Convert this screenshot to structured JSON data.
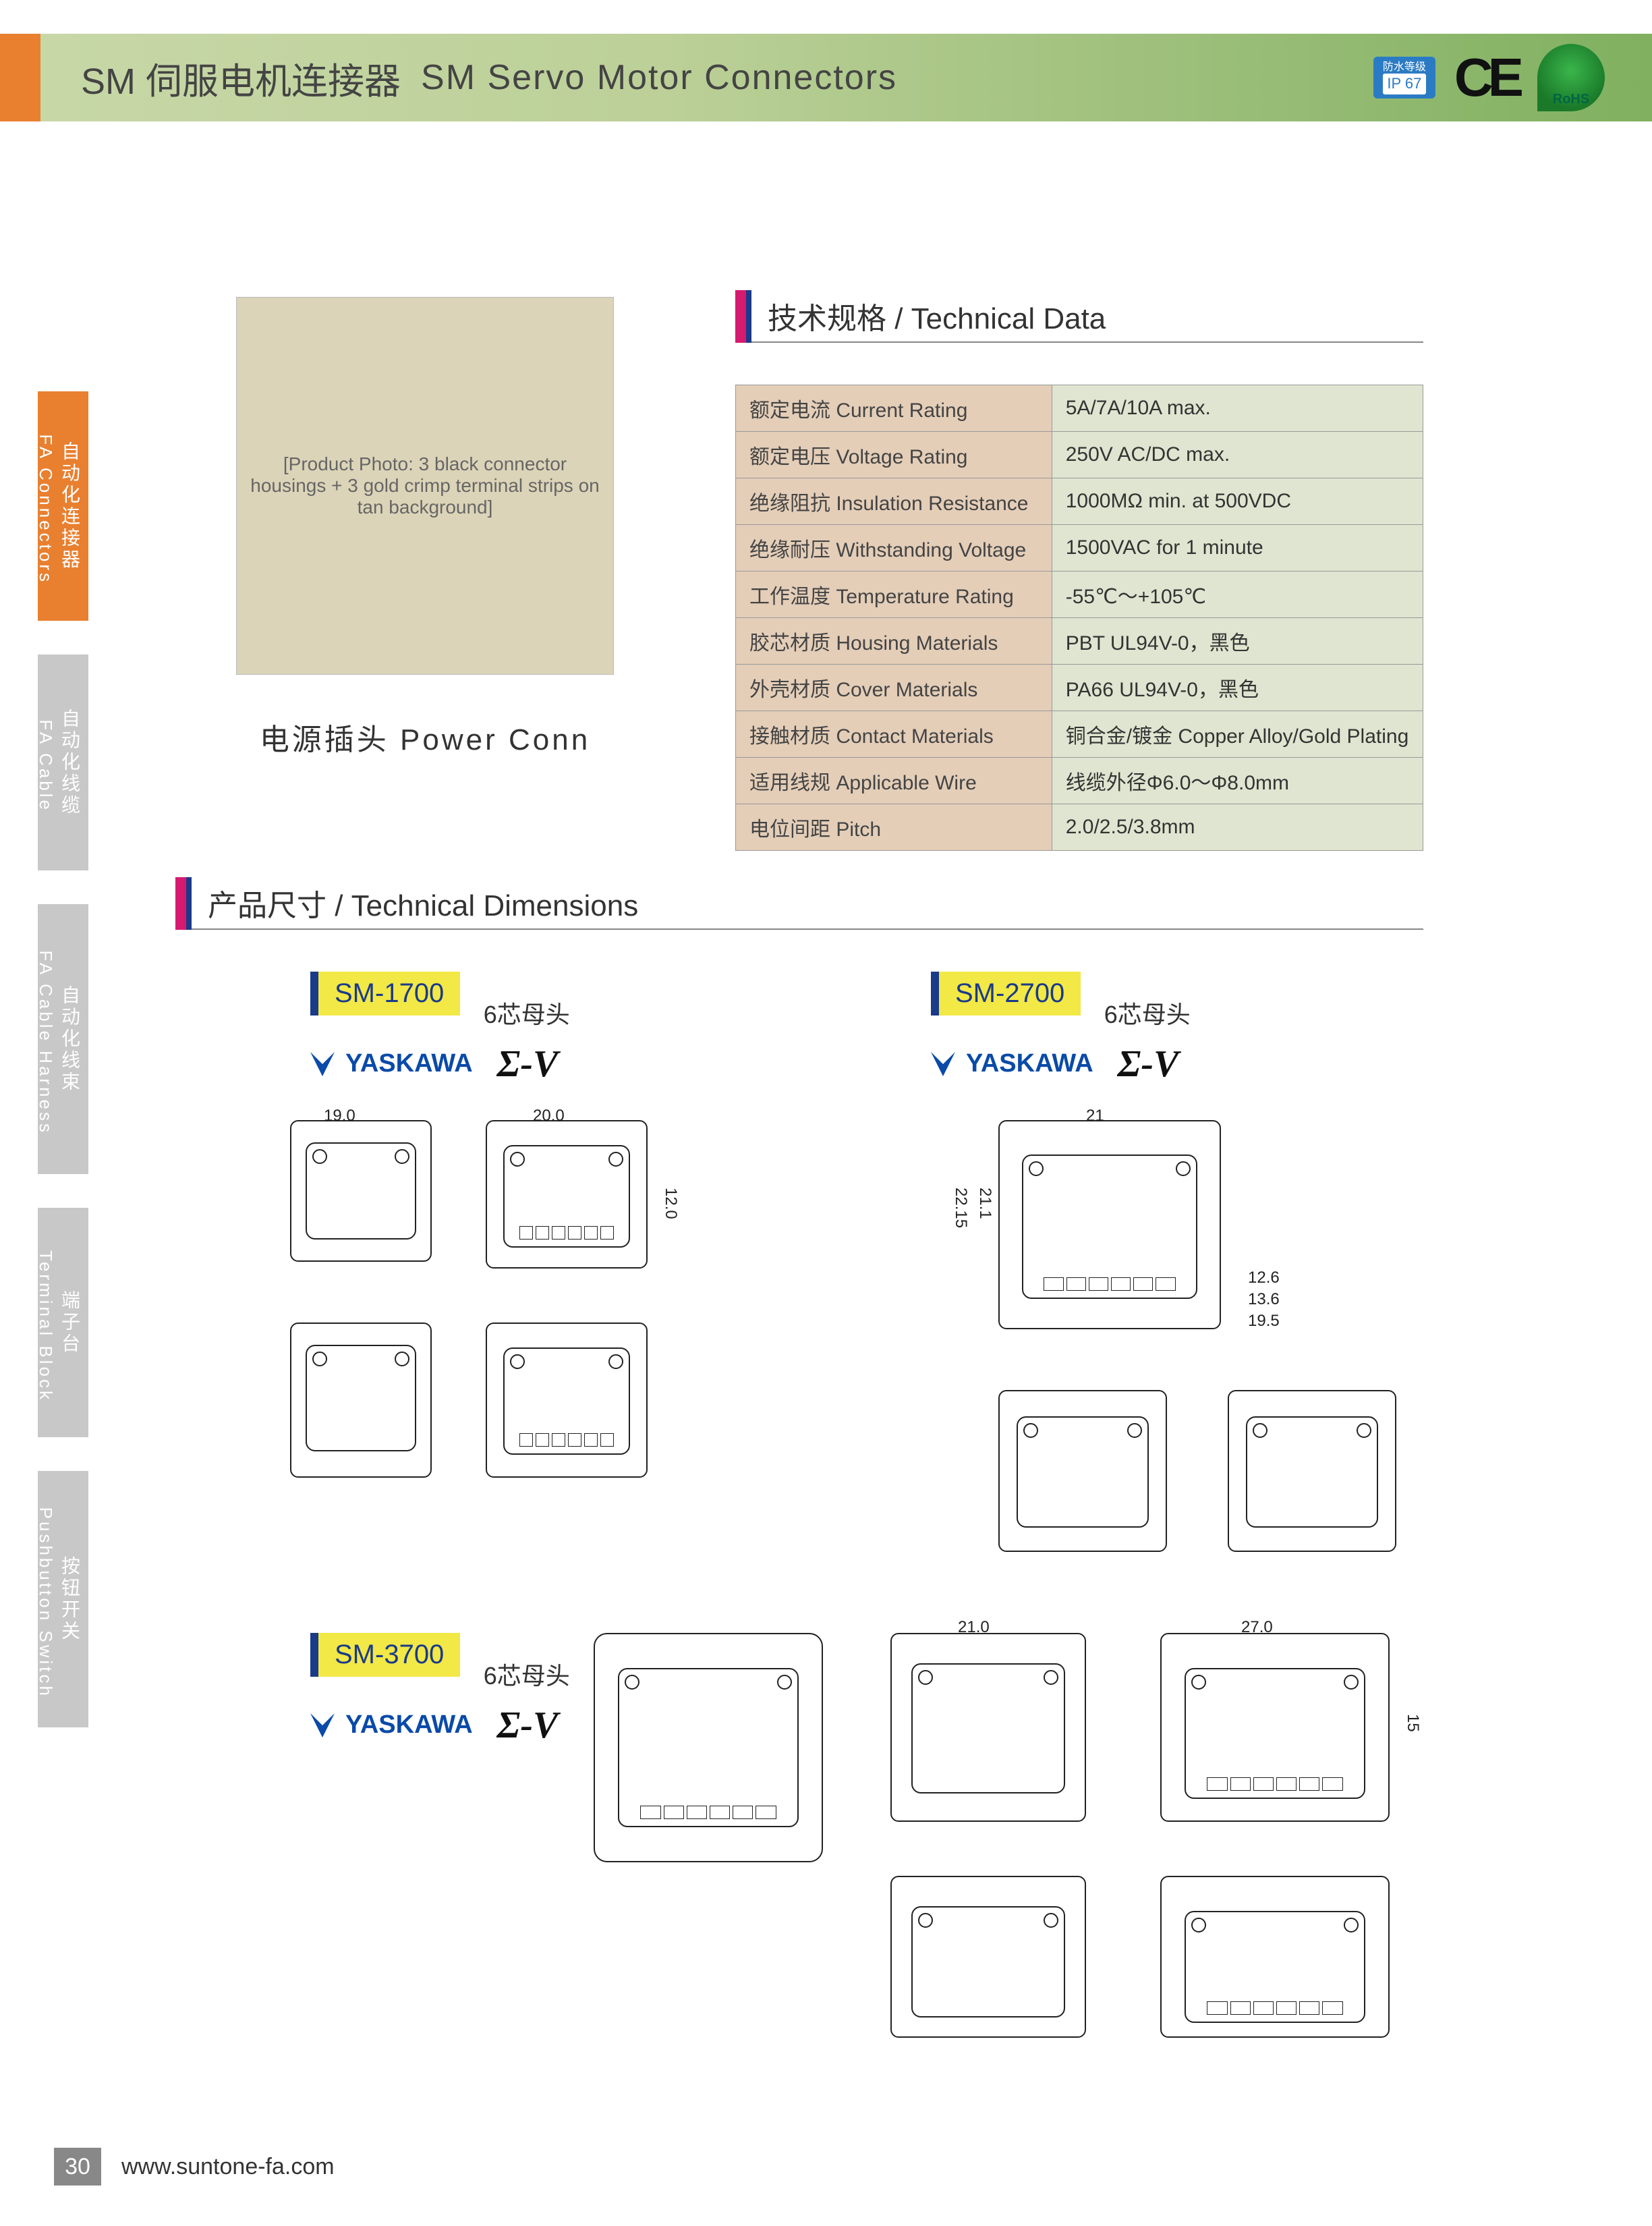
{
  "header": {
    "title_cn": "SM 伺服电机连接器",
    "title_en": "SM Servo Motor  Connectors",
    "ip_badge_top": "防水等级",
    "ip_badge": "IP 67",
    "ce": "CE",
    "rohs": "RoHS"
  },
  "side_tabs": [
    {
      "cn": "自动化连接器",
      "en": "FA Connectors"
    },
    {
      "cn": "自动化线缆",
      "en": "FA Cable"
    },
    {
      "cn": "自动化线束",
      "en": "FA Cable Harness"
    },
    {
      "cn": "端子台",
      "en": "Terminal Block"
    },
    {
      "cn": "按钮开关",
      "en": "Pushbutton Switch"
    }
  ],
  "photo_placeholder": "[Product Photo: 3 black connector housings + 3 gold crimp terminal strips on tan background]",
  "photo_caption": "电源插头  Power  Conn",
  "tech_heading": "技术规格 /  Technical Data",
  "dim_heading": "产品尺寸 /  Technical Dimensions",
  "tech_table": [
    {
      "k": "额定电流 Current Rating",
      "v": "5A/7A/10A  max."
    },
    {
      "k": "额定电压 Voltage Rating",
      "v": "250V AC/DC max."
    },
    {
      "k": "绝缘阻抗 Insulation Resistance",
      "v": "1000MΩ min. at 500VDC"
    },
    {
      "k": "绝缘耐压 Withstanding Voltage",
      "v": "1500VAC for 1 minute"
    },
    {
      "k": "工作温度 Temperature Rating",
      "v": "-55℃～+105℃"
    },
    {
      "k": "胶芯材质 Housing Materials",
      "v": "PBT  UL94V-0，黑色"
    },
    {
      "k": "外壳材质 Cover Materials",
      "v": " PA66  UL94V-0，黑色"
    },
    {
      "k": "接触材质 Contact Materials",
      "v": "铜合金/镀金 Copper Alloy/Gold Plating"
    },
    {
      "k": "适用线规 Applicable Wire",
      "v": "线缆外径Φ6.0～Φ8.0mm"
    },
    {
      "k": "电位间距 Pitch",
      "v": "2.0/2.5/3.8mm"
    }
  ],
  "models": {
    "m1": {
      "name": "SM-1700",
      "sub": "6芯母头",
      "brand": "YASKAWA",
      "series": "Σ-V",
      "dims": {
        "w1": "19.0",
        "w2": "20.0",
        "h2": "12.0"
      }
    },
    "m2": {
      "name": "SM-2700",
      "sub": "6芯母头",
      "brand": "YASKAWA",
      "series": "Σ-V",
      "dims": {
        "w": "21",
        "h1": "22.15",
        "h2": "21.1",
        "d1": "12.6",
        "d2": "13.6",
        "d3": "19.5"
      }
    },
    "m3": {
      "name": "SM-3700",
      "sub": "6芯母头",
      "brand": "YASKAWA",
      "series": "Σ-V",
      "dims": {
        "w1": "21.0",
        "w2": "27.0",
        "h": "15"
      }
    }
  },
  "colors": {
    "header_grad_start": "#c8d8a8",
    "header_grad_end": "#80b060",
    "orange": "#e88030",
    "magenta": "#d61a6f",
    "navy": "#1a3a8a",
    "yellow": "#f2e846",
    "table_key_bg": "#e4ceb8",
    "table_val_bg": "#dfe5d0",
    "side_inactive": "#c8c8c8"
  },
  "footer": {
    "page": "30",
    "url": "www.suntone-fa.com"
  }
}
